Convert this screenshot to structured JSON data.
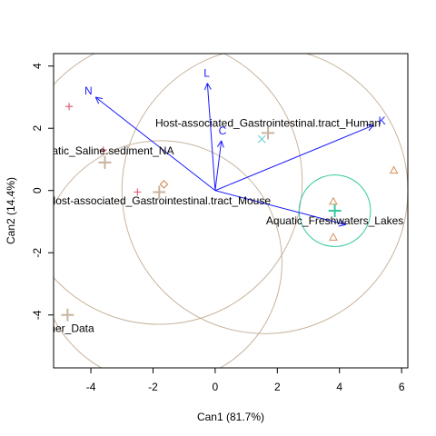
{
  "chart_data": {
    "type": "scatter",
    "title": "",
    "xlabel": "Can1 (81.7%)",
    "ylabel": "Can2 (14.4%)",
    "xlim": [
      -5.2,
      6.2
    ],
    "ylim": [
      -5.7,
      4.4
    ],
    "x_ticks": [
      -4,
      -2,
      0,
      2,
      4,
      6
    ],
    "y_ticks": [
      -4,
      -2,
      0,
      2,
      4
    ],
    "grid": false,
    "colors": {
      "vector": "#1a1aff",
      "tan": "#c8b49e",
      "red": "#e2637a",
      "orange": "#d4905c",
      "teal": "#36c8a0",
      "cyan": "#6fd4d4"
    },
    "vectors": [
      {
        "label": "N",
        "x": -3.85,
        "y": 3.0
      },
      {
        "label": "L",
        "x": -0.25,
        "y": 3.45
      },
      {
        "label": "C",
        "x": 0.2,
        "y": 1.6
      },
      {
        "label": "K",
        "x": 5.1,
        "y": 2.1
      },
      {
        "label": "",
        "x": 4.2,
        "y": -1.1
      }
    ],
    "circles": [
      {
        "cx": 1.6,
        "cy": 0.0,
        "r": 4.6,
        "color": "#c8b49e"
      },
      {
        "cx": -1.8,
        "cy": 0.3,
        "r": 4.6,
        "color": "#c8b49e"
      },
      {
        "cx": -1.75,
        "cy": -2.3,
        "r": 3.9,
        "color": "#c8b49e"
      },
      {
        "cx": 3.85,
        "cy": -0.65,
        "r": 1.15,
        "color": "#36c8a0"
      }
    ],
    "group_labels": [
      {
        "text": "Host-associated_Gastrointestinal.tract_Human",
        "x": 1.7,
        "y": 2.15
      },
      {
        "text": "Aquatic_Saline.sediment_NA",
        "x": -3.6,
        "y": 1.25
      },
      {
        "text": "Host-associated_Gastrointestinal.tract_Mouse",
        "x": -1.8,
        "y": -0.35
      },
      {
        "text": "Aquatic_Freshwaters_Lakes",
        "x": 3.85,
        "y": -1.0
      },
      {
        "text": "Other_Data",
        "x": -4.8,
        "y": -4.45
      }
    ],
    "centroids": [
      {
        "x": 1.7,
        "y": 1.85,
        "color": "#c8b49e"
      },
      {
        "x": -3.55,
        "y": 0.9,
        "color": "#c8b49e"
      },
      {
        "x": -1.8,
        "y": -0.05,
        "color": "#c8b49e"
      },
      {
        "x": 3.85,
        "y": -0.65,
        "color": "#36c8a0"
      },
      {
        "x": -4.75,
        "y": -4.0,
        "color": "#c8b49e"
      }
    ],
    "points": [
      {
        "x": -4.7,
        "y": 2.7,
        "shape": "plus",
        "color": "#e2637a"
      },
      {
        "x": -3.6,
        "y": 1.3,
        "shape": "plus",
        "color": "#e2637a"
      },
      {
        "x": -3.55,
        "y": 0.9,
        "shape": "plus",
        "color": "#d4905c"
      },
      {
        "x": -2.5,
        "y": -0.05,
        "shape": "plus",
        "color": "#e2637a"
      },
      {
        "x": -1.65,
        "y": 0.2,
        "shape": "diamond",
        "color": "#d4905c"
      },
      {
        "x": 1.5,
        "y": 1.65,
        "shape": "cross",
        "color": "#6fd4d4"
      },
      {
        "x": 3.8,
        "y": -0.35,
        "shape": "triangle",
        "color": "#d4905c"
      },
      {
        "x": 3.8,
        "y": -1.5,
        "shape": "triangle",
        "color": "#d4905c"
      },
      {
        "x": 5.75,
        "y": 0.65,
        "shape": "triangle",
        "color": "#d4905c"
      },
      {
        "x": -4.75,
        "y": -4.0,
        "shape": "plus",
        "color": "#9c9c7a"
      }
    ]
  }
}
